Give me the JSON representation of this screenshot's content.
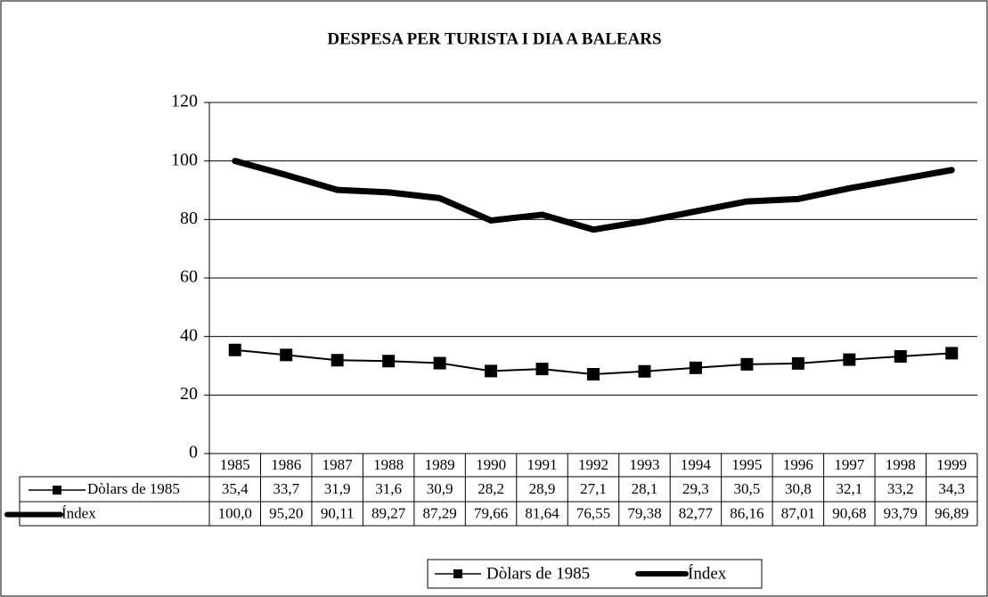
{
  "chart_data": {
    "type": "line",
    "title": "DESPESA PER TURISTA I DIA A BALEARS",
    "categories": [
      "1985",
      "1986",
      "1987",
      "1988",
      "1989",
      "1990",
      "1991",
      "1992",
      "1993",
      "1994",
      "1995",
      "1996",
      "1997",
      "1998",
      "1999"
    ],
    "series": [
      {
        "name": "Dòlars de 1985",
        "color": "#000000",
        "marker": "square",
        "values": [
          35.4,
          33.7,
          31.9,
          31.6,
          30.9,
          28.2,
          28.9,
          27.1,
          28.1,
          29.3,
          30.5,
          30.8,
          32.1,
          33.2,
          34.3
        ],
        "value_labels": [
          "35,4",
          "33,7",
          "31,9",
          "31,6",
          "30,9",
          "28,2",
          "28,9",
          "27,1",
          "28,1",
          "29,3",
          "30,5",
          "30,8",
          "32,1",
          "33,2",
          "34,3"
        ]
      },
      {
        "name": "Índex",
        "color": "#000000",
        "values": [
          100.0,
          95.2,
          90.11,
          89.27,
          87.29,
          79.66,
          81.64,
          76.55,
          79.38,
          82.77,
          86.16,
          87.01,
          90.68,
          93.79,
          96.89
        ],
        "value_labels": [
          "100,0",
          "95,20",
          "90,11",
          "89,27",
          "87,29",
          "79,66",
          "81,64",
          "76,55",
          "79,38",
          "82,77",
          "86,16",
          "87,01",
          "90,68",
          "93,79",
          "96,89"
        ]
      }
    ],
    "ylim": [
      0,
      120
    ],
    "yticks": [
      0,
      20,
      40,
      60,
      80,
      100,
      120
    ],
    "grid": true,
    "data_table": true,
    "legend": "bottom"
  }
}
